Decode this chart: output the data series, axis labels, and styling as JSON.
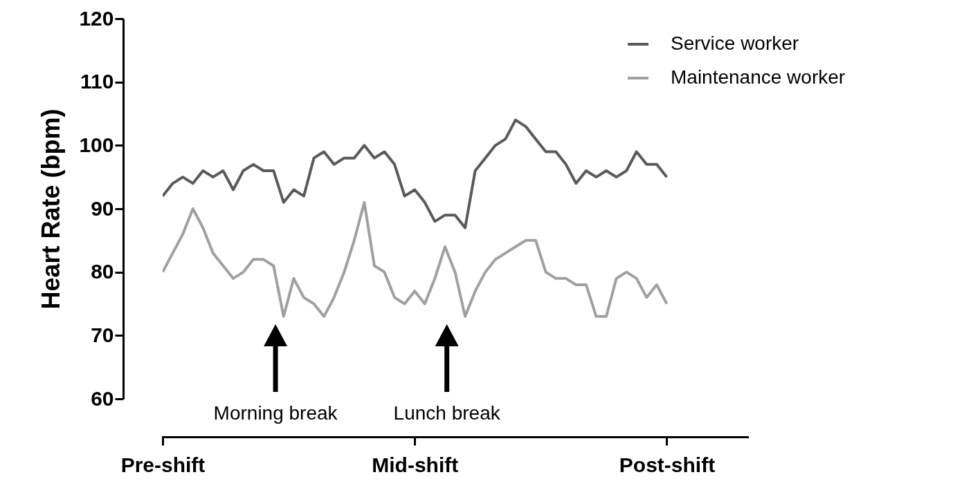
{
  "chart_data": {
    "type": "line",
    "ylabel": "Heart Rate (bpm)",
    "categories": [
      "Pre-shift",
      null,
      null,
      null,
      null,
      null,
      null,
      null,
      null,
      null,
      null,
      null,
      null,
      null,
      null,
      null,
      null,
      null,
      null,
      null,
      null,
      null,
      null,
      null,
      null,
      "Mid-shift",
      null,
      null,
      null,
      null,
      null,
      null,
      null,
      null,
      null,
      null,
      null,
      null,
      null,
      null,
      null,
      null,
      null,
      null,
      null,
      null,
      null,
      null,
      null,
      null,
      "Post-shift"
    ],
    "series": [
      {
        "name": "Service worker",
        "color": "#5a5a5a",
        "values": [
          92,
          94,
          95,
          94,
          96,
          95,
          96,
          93,
          96,
          97,
          96,
          96,
          91,
          93,
          92,
          98,
          99,
          97,
          98,
          98,
          100,
          98,
          99,
          97,
          92,
          93,
          91,
          88,
          89,
          89,
          87,
          96,
          98,
          100,
          101,
          104,
          103,
          101,
          99,
          99,
          97,
          94,
          96,
          95,
          96,
          95,
          96,
          99,
          97,
          97,
          95
        ]
      },
      {
        "name": "Maintenance worker",
        "color": "#a0a0a0",
        "values": [
          80,
          83,
          86,
          90,
          87,
          83,
          81,
          79,
          80,
          82,
          82,
          81,
          73,
          79,
          76,
          75,
          73,
          76,
          80,
          85,
          91,
          81,
          80,
          76,
          75,
          77,
          75,
          79,
          84,
          80,
          73,
          77,
          80,
          82,
          83,
          84,
          85,
          85,
          80,
          79,
          79,
          78,
          78,
          73,
          73,
          79,
          80,
          79,
          76,
          78,
          75
        ]
      }
    ],
    "ylim": [
      60,
      120
    ],
    "yticks": [
      60,
      70,
      80,
      90,
      100,
      110,
      120
    ],
    "annotations": [
      "Morning break",
      "Lunch break"
    ],
    "grid": false,
    "legend": "top right",
    "line_style": "solid",
    "marker": "none"
  }
}
